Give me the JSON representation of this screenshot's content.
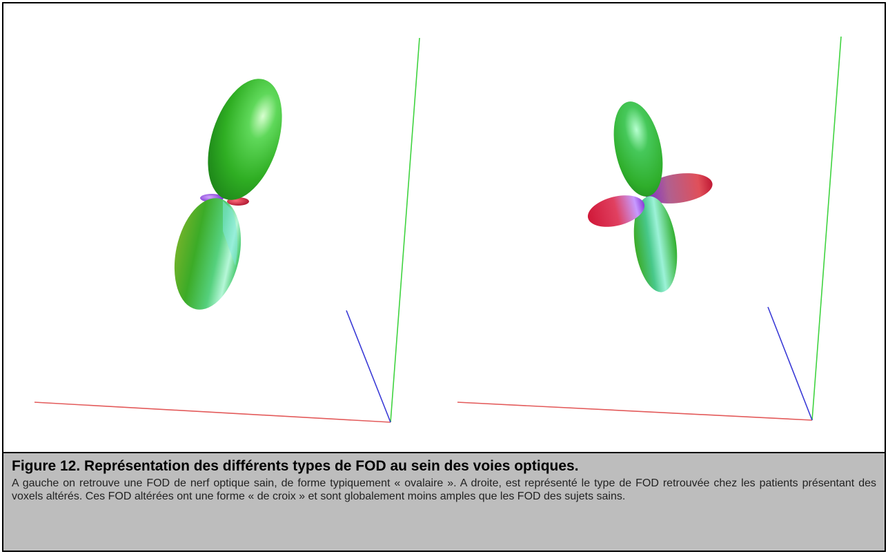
{
  "caption": {
    "title": "Figure 12. Représentation des différents types de FOD au sein des voies optiques.",
    "text": "A gauche on retrouve une FOD de nerf optique sain, de forme typiquement « ovalaire ». A droite, est représenté le type de FOD retrouvée chez les patients présentant des voxels altérés. Ces FOD altérées ont une forme « de croix » et sont globalement moins amples que les FOD des sujets sains."
  },
  "colors": {
    "x_axis": "#e05050",
    "y_axis": "#33cc33",
    "z_axis": "#3333cc",
    "lobe_green": "#3fbf2a",
    "lobe_cyan": "#3fc7b4",
    "lobe_red": "#d0203a",
    "lobe_purple": "#8a3ad8"
  },
  "panels": [
    {
      "name": "left-panel",
      "shape": "ovalaire"
    },
    {
      "name": "right-panel",
      "shape": "croix"
    }
  ]
}
